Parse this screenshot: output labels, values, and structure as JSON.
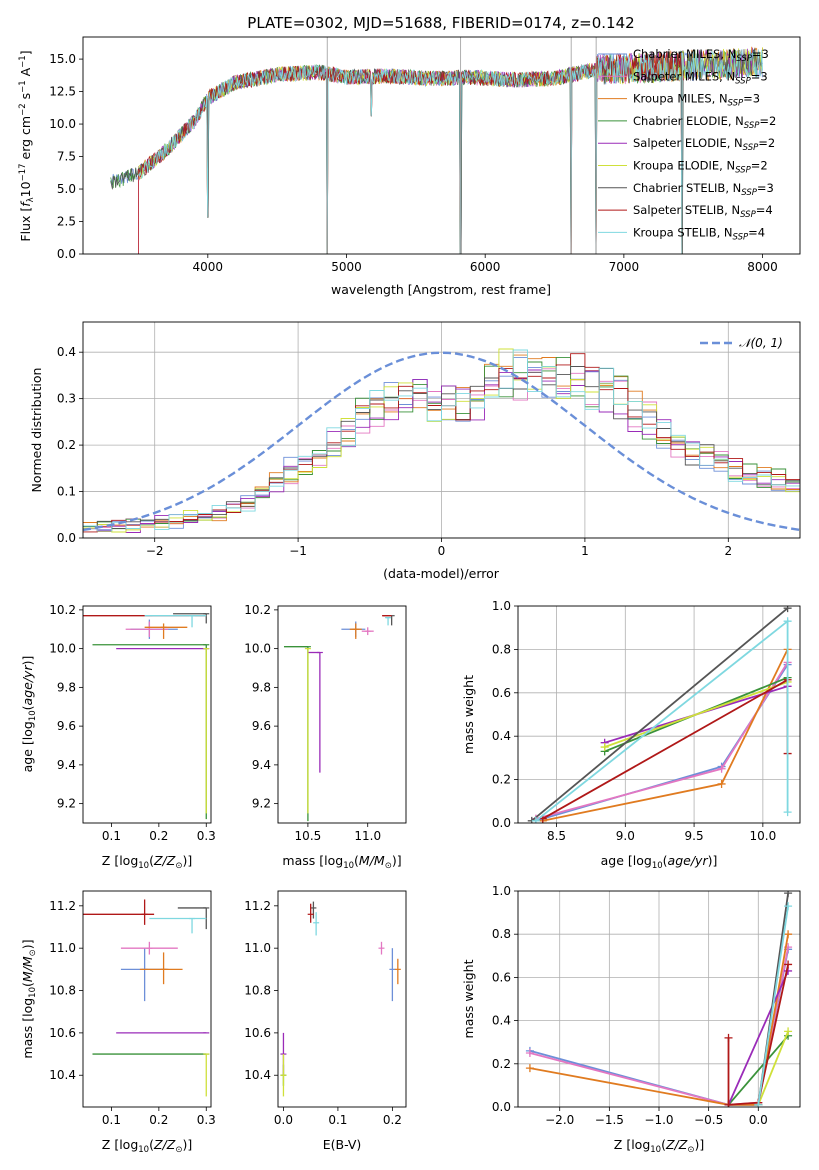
{
  "figure": {
    "title": "PLATE=0302, MJD=51688, FIBERID=0174, z=0.142"
  },
  "colors": {
    "Chabrier MILES": "#6d8fd8",
    "Salpeter MILES": "#e377c2",
    "Kroupa MILES": "#e07b20",
    "Chabrier ELODIE": "#3a923a",
    "Salpeter ELODIE": "#9a2bb8",
    "Kroupa ELODIE": "#cfe03a",
    "Chabrier STELIB": "#555555",
    "Salpeter STELIB": "#b01818",
    "Kroupa STELIB": "#7fd8e0",
    "gauss": "#6a8fd8"
  },
  "chart_data": [
    {
      "id": "spectrum",
      "type": "line",
      "title": "PLATE=0302, MJD=51688, FIBERID=0174, z=0.142",
      "xlabel": "wavelength [Angstrom, rest frame]",
      "ylabel": "Flux [f_λ 10^-17 erg cm^-2 s^-1 A^-1]",
      "xlim": [
        3100,
        8270
      ],
      "ylim": [
        0,
        16.7
      ],
      "xticks": [
        4000,
        5000,
        6000,
        7000,
        8000
      ],
      "yticks": [
        0.0,
        2.5,
        5.0,
        7.5,
        10.0,
        12.5,
        15.0
      ],
      "legend_loc": "upper right",
      "legend": [
        "Chabrier MILES, N_SSP=3",
        "Salpeter MILES, N_SSP=3",
        "Kroupa MILES, N_SSP=3",
        "Chabrier ELODIE, N_SSP=2",
        "Salpeter ELODIE, N_SSP=2",
        "Kroupa ELODIE, N_SSP=2",
        "Chabrier STELIB, N_SSP=3",
        "Salpeter STELIB, N_SSP=4",
        "Kroupa STELIB, N_SSP=4"
      ],
      "continuum": {
        "x": [
          3300,
          3500,
          3700,
          3900,
          4000,
          4200,
          4500,
          4800,
          5000,
          5300,
          5600,
          5900,
          6200,
          6500,
          6800,
          7100,
          7400,
          7700,
          8000
        ],
        "y": [
          5.5,
          6.2,
          8.0,
          10.2,
          12.0,
          13.2,
          13.8,
          14.0,
          13.6,
          13.7,
          13.5,
          13.6,
          13.4,
          13.5,
          14.2,
          14.3,
          14.5,
          14.6,
          14.8
        ]
      },
      "observed_range": [
        3500,
        7430
      ],
      "dips": [
        {
          "x": 4000,
          "y": 2.8
        },
        {
          "x": 4861,
          "y": 0.0
        },
        {
          "x": 5180,
          "y": 10.6
        },
        {
          "x": 5823,
          "y": 0.0
        },
        {
          "x": 6620,
          "y": 0.0
        },
        {
          "x": 6800,
          "y": 0.0
        },
        {
          "x": 7420,
          "y": 0.0
        }
      ]
    },
    {
      "id": "residuals",
      "type": "line",
      "xlabel": "(data-model)/error",
      "ylabel": "Normed distribution",
      "xlim": [
        -2.5,
        2.5
      ],
      "ylim": [
        0,
        0.465
      ],
      "xticks": [
        -2,
        -1,
        0,
        1,
        2
      ],
      "yticks": [
        0.0,
        0.1,
        0.2,
        0.3,
        0.4
      ],
      "grid": true,
      "legend": [
        "𝒩(0,1)"
      ],
      "legend_loc": "upper right",
      "gaussian": {
        "mean": 0,
        "sigma": 1
      },
      "hist_envelope": {
        "x": [
          -2.5,
          -2.0,
          -1.5,
          -1.0,
          -0.7,
          -0.4,
          -0.2,
          0.0,
          0.2,
          0.4,
          0.6,
          0.8,
          1.0,
          1.3,
          1.6,
          2.0,
          2.5
        ],
        "y": [
          0.02,
          0.03,
          0.055,
          0.15,
          0.22,
          0.29,
          0.31,
          0.29,
          0.28,
          0.35,
          0.36,
          0.34,
          0.33,
          0.3,
          0.21,
          0.15,
          0.11
        ]
      }
    },
    {
      "id": "age_vs_Z",
      "type": "scatter",
      "xlabel": "Z [log10(Z/Z⊙)]",
      "ylabel": "age  [log10(age/yr)]",
      "xlim": [
        0.04,
        0.31
      ],
      "ylim": [
        9.1,
        10.22
      ],
      "xticks": [
        0.1,
        0.2,
        0.3
      ],
      "yticks": [
        9.2,
        9.4,
        9.6,
        9.8,
        10.0,
        10.2
      ],
      "points": [
        {
          "series": "Chabrier MILES",
          "x": 0.18,
          "y": 10.1,
          "xerr": [
            0.04,
            0.06
          ],
          "yerr": [
            0.05,
            0.05
          ]
        },
        {
          "series": "Salpeter MILES",
          "x": 0.18,
          "y": 10.1,
          "xerr": [
            0.05,
            0.04
          ],
          "yerr": [
            0.04,
            0.04
          ]
        },
        {
          "series": "Kroupa MILES",
          "x": 0.21,
          "y": 10.11,
          "xerr": [
            0.04,
            0.05
          ],
          "yerr": [
            0.06,
            0.02
          ]
        },
        {
          "series": "Chabrier ELODIE",
          "x": 0.3,
          "y": 10.02,
          "xerr": [
            0.24,
            0.0
          ],
          "yerr": [
            0.9,
            0.0
          ]
        },
        {
          "series": "Salpeter ELODIE",
          "x": 0.3,
          "y": 10.0,
          "xerr": [
            0.19,
            0.0
          ],
          "yerr": [
            0.0,
            0.0
          ]
        },
        {
          "series": "Kroupa ELODIE",
          "x": 0.3,
          "y": 10.0,
          "xerr": [
            0.0,
            0.0
          ],
          "yerr": [
            0.85,
            0.0
          ]
        },
        {
          "series": "Chabrier STELIB",
          "x": 0.3,
          "y": 10.18,
          "xerr": [
            0.07,
            0.0
          ],
          "yerr": [
            0.05,
            0.0
          ]
        },
        {
          "series": "Salpeter STELIB",
          "x": 0.18,
          "y": 10.17,
          "xerr": [
            0.16,
            0.12
          ],
          "yerr": [
            0.0,
            0.0
          ]
        },
        {
          "series": "Kroupa STELIB",
          "x": 0.27,
          "y": 10.17,
          "xerr": [
            0.1,
            0.03
          ],
          "yerr": [
            0.06,
            0.0
          ]
        }
      ]
    },
    {
      "id": "age_vs_mass",
      "type": "scatter",
      "xlabel": "mass [log10(M/M⊙)]",
      "ylabel": "",
      "xlim": [
        10.25,
        11.32
      ],
      "ylim": [
        9.1,
        10.22
      ],
      "xticks": [
        10.5,
        11.0
      ],
      "yticks": [
        9.2,
        9.4,
        9.6,
        9.8,
        10.0,
        10.2
      ],
      "points": [
        {
          "series": "Chabrier MILES",
          "x": 10.9,
          "y": 10.1,
          "xerr": [
            0.12,
            0.08
          ],
          "yerr": [
            0.04,
            0.04
          ]
        },
        {
          "series": "Salpeter MILES",
          "x": 11.0,
          "y": 10.09,
          "xerr": [
            0.05,
            0.05
          ],
          "yerr": [
            0.02,
            0.02
          ]
        },
        {
          "series": "Kroupa MILES",
          "x": 10.9,
          "y": 10.1,
          "xerr": [
            0.05,
            0.05
          ],
          "yerr": [
            0.05,
            0.03
          ]
        },
        {
          "series": "Chabrier ELODIE",
          "x": 10.5,
          "y": 10.01,
          "xerr": [
            0.2,
            0.0
          ],
          "yerr": [
            0.9,
            0.0
          ]
        },
        {
          "series": "Salpeter ELODIE",
          "x": 10.6,
          "y": 9.98,
          "xerr": [
            0.1,
            0.0
          ],
          "yerr": [
            0.62,
            0.0
          ]
        },
        {
          "series": "Kroupa ELODIE",
          "x": 10.5,
          "y": 10.0,
          "xerr": [
            0.0,
            0.0
          ],
          "yerr": [
            0.85,
            0.0
          ]
        },
        {
          "series": "Chabrier STELIB",
          "x": 11.2,
          "y": 10.17,
          "xerr": [
            0.0,
            0.0
          ],
          "yerr": [
            0.05,
            0.0
          ]
        },
        {
          "series": "Salpeter STELIB",
          "x": 11.15,
          "y": 10.17,
          "xerr": [
            0.03,
            0.05
          ],
          "yerr": [
            0.0,
            0.0
          ]
        },
        {
          "series": "Kroupa STELIB",
          "x": 11.17,
          "y": 10.16,
          "xerr": [
            0.02,
            0.02
          ],
          "yerr": [
            0.04,
            0.0
          ]
        }
      ]
    },
    {
      "id": "massweight_vs_age",
      "type": "line",
      "xlabel": "age  [log10(age/yr)]",
      "ylabel": "mass weight",
      "xlim": [
        8.22,
        10.27
      ],
      "ylim": [
        0.0,
        1.0
      ],
      "xticks": [
        8.5,
        9.0,
        9.5,
        10.0
      ],
      "yticks": [
        0.0,
        0.2,
        0.4,
        0.6,
        0.8,
        1.0
      ],
      "grid": true,
      "series": [
        {
          "name": "Chabrier MILES",
          "x": [
            8.35,
            9.7,
            10.18
          ],
          "y": [
            0.01,
            0.26,
            0.73
          ]
        },
        {
          "name": "Salpeter MILES",
          "x": [
            8.35,
            9.7,
            10.18
          ],
          "y": [
            0.02,
            0.25,
            0.74
          ]
        },
        {
          "name": "Kroupa MILES",
          "x": [
            8.4,
            9.7,
            10.18
          ],
          "y": [
            0.01,
            0.18,
            0.8
          ]
        },
        {
          "name": "Chabrier ELODIE",
          "x": [
            8.85,
            10.18
          ],
          "y": [
            0.33,
            0.67
          ]
        },
        {
          "name": "Salpeter ELODIE",
          "x": [
            8.85,
            10.18
          ],
          "y": [
            0.37,
            0.63
          ]
        },
        {
          "name": "Kroupa ELODIE",
          "x": [
            8.85,
            10.18
          ],
          "y": [
            0.35,
            0.65
          ]
        },
        {
          "name": "Chabrier STELIB",
          "x": [
            8.32,
            10.18
          ],
          "y": [
            0.01,
            0.99
          ]
        },
        {
          "name": "Salpeter STELIB",
          "x": [
            8.4,
            10.18,
            10.18
          ],
          "y": [
            0.02,
            0.66,
            0.32
          ]
        },
        {
          "name": "Kroupa STELIB",
          "x": [
            8.35,
            10.18,
            10.18
          ],
          "y": [
            0.01,
            0.93,
            0.05
          ]
        }
      ]
    },
    {
      "id": "mass_vs_Z",
      "type": "scatter",
      "xlabel": "Z [log10(Z/Z⊙)]",
      "ylabel": "mass [log10(M/M⊙)]",
      "xlim": [
        0.04,
        0.31
      ],
      "ylim": [
        10.25,
        11.27
      ],
      "xticks": [
        0.1,
        0.2,
        0.3
      ],
      "yticks": [
        10.4,
        10.6,
        10.8,
        11.0,
        11.2
      ],
      "points": [
        {
          "series": "Chabrier MILES",
          "x": 0.17,
          "y": 10.9,
          "xerr": [
            0.05,
            0.05
          ],
          "yerr": [
            0.15,
            0.1
          ]
        },
        {
          "series": "Salpeter MILES",
          "x": 0.18,
          "y": 11.0,
          "xerr": [
            0.06,
            0.06
          ],
          "yerr": [
            0.03,
            0.03
          ]
        },
        {
          "series": "Kroupa MILES",
          "x": 0.21,
          "y": 10.9,
          "xerr": [
            0.05,
            0.04
          ],
          "yerr": [
            0.07,
            0.08
          ]
        },
        {
          "series": "Chabrier ELODIE",
          "x": 0.3,
          "y": 10.5,
          "xerr": [
            0.24,
            0.0
          ],
          "yerr": [
            0.0,
            0.0
          ]
        },
        {
          "series": "Salpeter ELODIE",
          "x": 0.3,
          "y": 10.6,
          "xerr": [
            0.19,
            0.0
          ],
          "yerr": [
            0.0,
            0.0
          ]
        },
        {
          "series": "Kroupa ELODIE",
          "x": 0.3,
          "y": 10.5,
          "xerr": [
            0.0,
            0.0
          ],
          "yerr": [
            0.2,
            0.0
          ]
        },
        {
          "series": "Chabrier STELIB",
          "x": 0.3,
          "y": 11.19,
          "xerr": [
            0.06,
            0.0
          ],
          "yerr": [
            0.1,
            0.0
          ]
        },
        {
          "series": "Salpeter STELIB",
          "x": 0.17,
          "y": 11.16,
          "xerr": [
            0.15,
            0.02
          ],
          "yerr": [
            0.05,
            0.07
          ]
        },
        {
          "series": "Kroupa STELIB",
          "x": 0.27,
          "y": 11.14,
          "xerr": [
            0.09,
            0.03
          ],
          "yerr": [
            0.07,
            0.0
          ]
        }
      ]
    },
    {
      "id": "mass_vs_EBV",
      "type": "scatter",
      "xlabel": "E(B-V)",
      "ylabel": "",
      "xlim": [
        -0.01,
        0.225
      ],
      "ylim": [
        10.25,
        11.27
      ],
      "xticks": [
        0.0,
        0.1,
        0.2
      ],
      "yticks": [
        10.4,
        10.6,
        10.8,
        11.0,
        11.2
      ],
      "points": [
        {
          "series": "Chabrier MILES",
          "x": 0.2,
          "y": 10.9,
          "xerr": [
            0,
            0
          ],
          "yerr": [
            0.15,
            0.1
          ]
        },
        {
          "series": "Salpeter MILES",
          "x": 0.18,
          "y": 11.0,
          "xerr": [
            0,
            0
          ],
          "yerr": [
            0.03,
            0.03
          ]
        },
        {
          "series": "Kroupa MILES",
          "x": 0.21,
          "y": 10.9,
          "xerr": [
            0,
            0
          ],
          "yerr": [
            0.07,
            0.05
          ]
        },
        {
          "series": "Chabrier ELODIE",
          "x": 0.0,
          "y": 10.4,
          "xerr": [
            0,
            0
          ],
          "yerr": [
            0.05,
            0.05
          ]
        },
        {
          "series": "Salpeter ELODIE",
          "x": 0.0,
          "y": 10.5,
          "xerr": [
            0,
            0
          ],
          "yerr": [
            0.1,
            0.1
          ]
        },
        {
          "series": "Kroupa ELODIE",
          "x": 0.0,
          "y": 10.4,
          "xerr": [
            0,
            0
          ],
          "yerr": [
            0.1,
            0.1
          ]
        },
        {
          "series": "Chabrier STELIB",
          "x": 0.055,
          "y": 11.19,
          "xerr": [
            0,
            0
          ],
          "yerr": [
            0.05,
            0.03
          ]
        },
        {
          "series": "Salpeter STELIB",
          "x": 0.05,
          "y": 11.16,
          "xerr": [
            0,
            0
          ],
          "yerr": [
            0.04,
            0.05
          ]
        },
        {
          "series": "Kroupa STELIB",
          "x": 0.06,
          "y": 11.12,
          "xerr": [
            0,
            0
          ],
          "yerr": [
            0.06,
            0.05
          ]
        }
      ]
    },
    {
      "id": "massweight_vs_Z",
      "type": "line",
      "xlabel": "Z [log10(Z/Z⊙)]",
      "ylabel": "mass weight",
      "xlim": [
        -2.42,
        0.42
      ],
      "ylim": [
        0.0,
        1.0
      ],
      "xticks": [
        -2.0,
        -1.5,
        -1.0,
        -0.5,
        0.0
      ],
      "yticks": [
        0.0,
        0.2,
        0.4,
        0.6,
        0.8,
        1.0
      ],
      "grid": true,
      "series": [
        {
          "name": "Chabrier MILES",
          "x": [
            -2.3,
            -0.3,
            0.0,
            0.3
          ],
          "y": [
            0.26,
            0.01,
            0.01,
            0.73
          ]
        },
        {
          "name": "Salpeter MILES",
          "x": [
            -2.3,
            -0.3,
            0.0,
            0.3
          ],
          "y": [
            0.25,
            0.01,
            0.02,
            0.74
          ]
        },
        {
          "name": "Kroupa MILES",
          "x": [
            -2.3,
            -0.3,
            0.0,
            0.3
          ],
          "y": [
            0.18,
            0.01,
            0.01,
            0.8
          ]
        },
        {
          "name": "Chabrier ELODIE",
          "x": [
            -0.3,
            0.3
          ],
          "y": [
            0.01,
            0.33
          ]
        },
        {
          "name": "Salpeter ELODIE",
          "x": [
            -0.3,
            0.3
          ],
          "y": [
            0.01,
            0.63
          ]
        },
        {
          "name": "Kroupa ELODIE",
          "x": [
            0.0,
            0.3
          ],
          "y": [
            0.01,
            0.35
          ]
        },
        {
          "name": "Chabrier STELIB",
          "x": [
            0.0,
            0.3
          ],
          "y": [
            0.01,
            0.99
          ]
        },
        {
          "name": "Salpeter STELIB",
          "x": [
            -0.3,
            -0.3,
            0.0,
            0.3
          ],
          "y": [
            0.32,
            0.01,
            0.02,
            0.66
          ]
        },
        {
          "name": "Kroupa STELIB",
          "x": [
            0.0,
            0.3
          ],
          "y": [
            0.01,
            0.93
          ]
        }
      ]
    }
  ]
}
